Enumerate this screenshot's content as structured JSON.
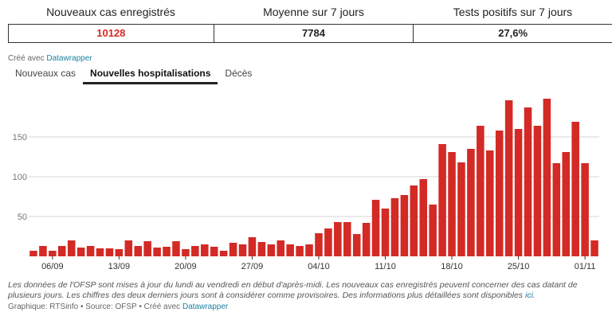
{
  "stats": [
    {
      "label": "Nouveaux cas enregistrés",
      "value": "10128"
    },
    {
      "label": "Moyenne sur 7 jours",
      "value": "7784"
    },
    {
      "label": "Tests positifs sur 7 jours",
      "value": "27,6%"
    }
  ],
  "credit_top": {
    "prefix": "Créé avec ",
    "link": "Datawrapper"
  },
  "tabs": [
    "Nouveaux cas",
    "Nouvelles hospitalisations",
    "Décès"
  ],
  "active_tab": 1,
  "notes": {
    "text": "Les données de l'OFSP sont mises à jour du lundi au vendredi en début d'après-midi. Les nouveaux cas enregistrés peuvent concerner des cas datant de plusieurs jours. Les chiffres des deux derniers jours sont à considérer comme provisoires. Des informations plus détaillées sont disponibles ",
    "link": "ici",
    "end": "."
  },
  "credit_bottom": {
    "prefix": "Graphique: RTSinfo • Source: OFSP • Créé avec ",
    "link": "Datawrapper"
  },
  "colors": {
    "bar": "#d32a25",
    "value_highlight": "#d62a24"
  },
  "chart_data": {
    "type": "bar",
    "ylim": [
      0,
      200
    ],
    "yticks": [
      50,
      100,
      150
    ],
    "xticks": [
      {
        "index": 2,
        "label": "06/09"
      },
      {
        "index": 9,
        "label": "13/09"
      },
      {
        "index": 16,
        "label": "20/09"
      },
      {
        "index": 23,
        "label": "27/09"
      },
      {
        "index": 30,
        "label": "04/10"
      },
      {
        "index": 37,
        "label": "11/10"
      },
      {
        "index": 44,
        "label": "18/10"
      },
      {
        "index": 51,
        "label": "25/10"
      },
      {
        "index": 58,
        "label": "01/11"
      }
    ],
    "values": [
      7,
      13,
      7,
      13,
      20,
      11,
      13,
      10,
      10,
      9,
      20,
      13,
      19,
      11,
      12,
      19,
      9,
      13,
      15,
      12,
      7,
      17,
      15,
      24,
      18,
      15,
      20,
      15,
      13,
      15,
      29,
      35,
      43,
      43,
      28,
      42,
      71,
      60,
      73,
      77,
      89,
      97,
      65,
      141,
      131,
      118,
      135,
      164,
      133,
      158,
      196,
      160,
      187,
      164,
      198,
      117,
      131,
      169,
      117,
      20
    ]
  }
}
